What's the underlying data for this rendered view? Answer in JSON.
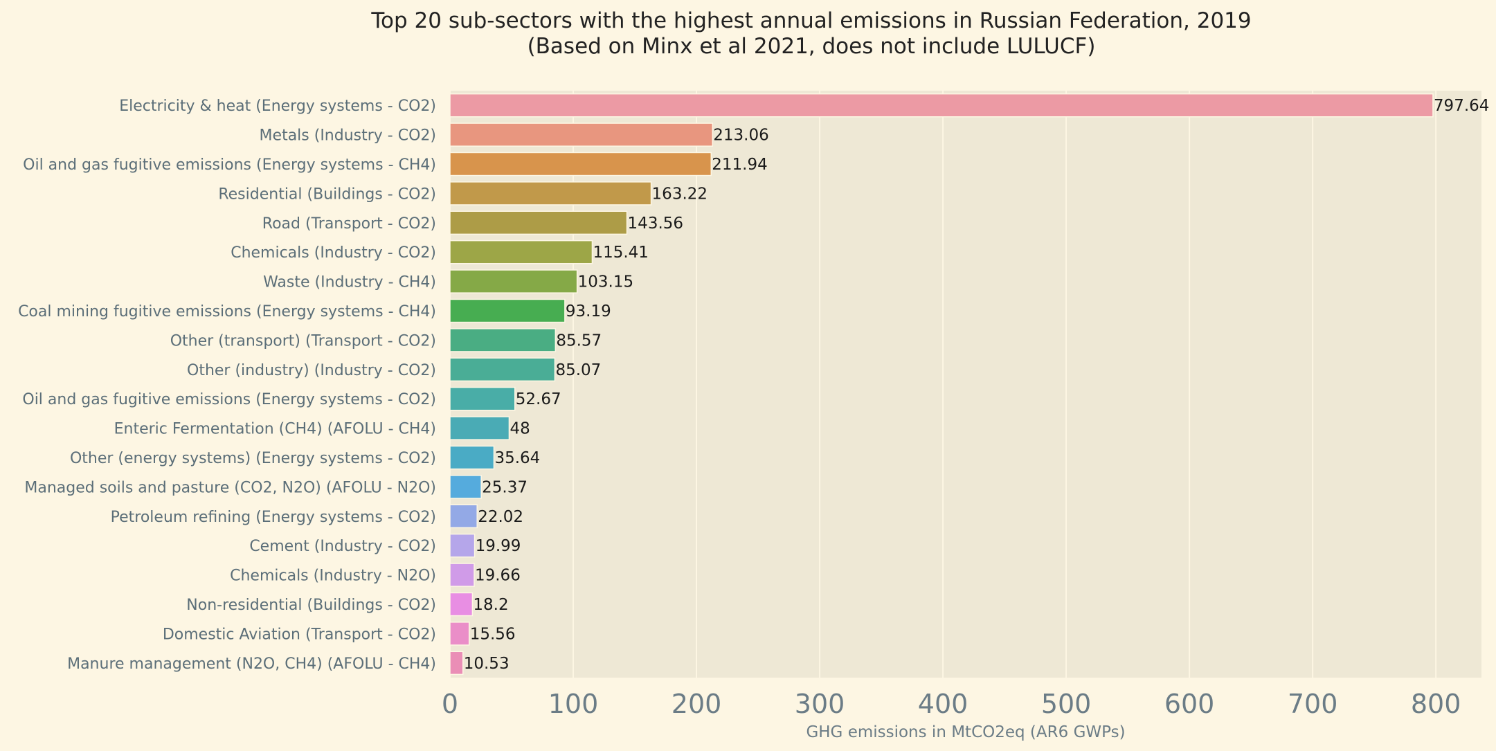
{
  "chart_data": {
    "type": "bar",
    "orientation": "horizontal",
    "title": "Top 20 sub-sectors with the highest annual emissions in Russian Federation, 2019",
    "subtitle": "(Based on Minx et al 2021, does not include LULUCF)",
    "xlabel": "GHG emissions in MtCO2eq (AR6 GWPs)",
    "ylabel": "",
    "xlim": [
      0,
      837
    ],
    "xticks": [
      0,
      100,
      200,
      300,
      400,
      500,
      600,
      700,
      800
    ],
    "grid": true,
    "categories": [
      "Electricity & heat (Energy systems - CO2)",
      "Metals (Industry - CO2)",
      "Oil and gas fugitive emissions (Energy systems - CH4)",
      "Residential (Buildings - CO2)",
      "Road (Transport - CO2)",
      "Chemicals (Industry - CO2)",
      "Waste (Industry - CH4)",
      "Coal mining fugitive emissions (Energy systems - CH4)",
      "Other (transport) (Transport - CO2)",
      "Other (industry) (Industry - CO2)",
      "Oil and gas fugitive emissions (Energy systems - CO2)",
      "Enteric Fermentation (CH4) (AFOLU - CH4)",
      "Other (energy systems) (Energy systems - CO2)",
      "Managed soils and pasture (CO2, N2O) (AFOLU - N2O)",
      "Petroleum refining (Energy systems - CO2)",
      "Cement (Industry - CO2)",
      "Chemicals (Industry - N2O)",
      "Non-residential (Buildings - CO2)",
      "Domestic Aviation (Transport - CO2)",
      "Manure management (N2O, CH4) (AFOLU - CH4)"
    ],
    "values": [
      797.64,
      213.06,
      211.94,
      163.22,
      143.56,
      115.41,
      103.15,
      93.19,
      85.57,
      85.07,
      52.67,
      48,
      35.64,
      25.37,
      22.02,
      19.99,
      19.66,
      18.2,
      15.56,
      10.53
    ],
    "value_labels": [
      "797.64",
      "213.06",
      "211.94",
      "163.22",
      "143.56",
      "115.41",
      "103.15",
      "93.19",
      "85.57",
      "85.07",
      "52.67",
      "48",
      "35.64",
      "25.37",
      "22.02",
      "19.99",
      "19.66",
      "18.2",
      "15.56",
      "10.53"
    ],
    "colors": [
      "#ec9aa4",
      "#e8967f",
      "#d8944c",
      "#c1994a",
      "#ad9c47",
      "#9da647",
      "#85a947",
      "#47ad51",
      "#4aad83",
      "#4aad96",
      "#49ada7",
      "#4aabb5",
      "#4aabc5",
      "#55abdd",
      "#93a9e6",
      "#b5a6ea",
      "#d09be8",
      "#e88ee3",
      "#ea8ec8",
      "#ea8eb6"
    ]
  },
  "theme": {
    "page_bg": "#fdf6e3",
    "plot_bg": "#eee8d5",
    "grid_color": "#fdf6e3",
    "bar_edge": "#fdf6e3"
  }
}
